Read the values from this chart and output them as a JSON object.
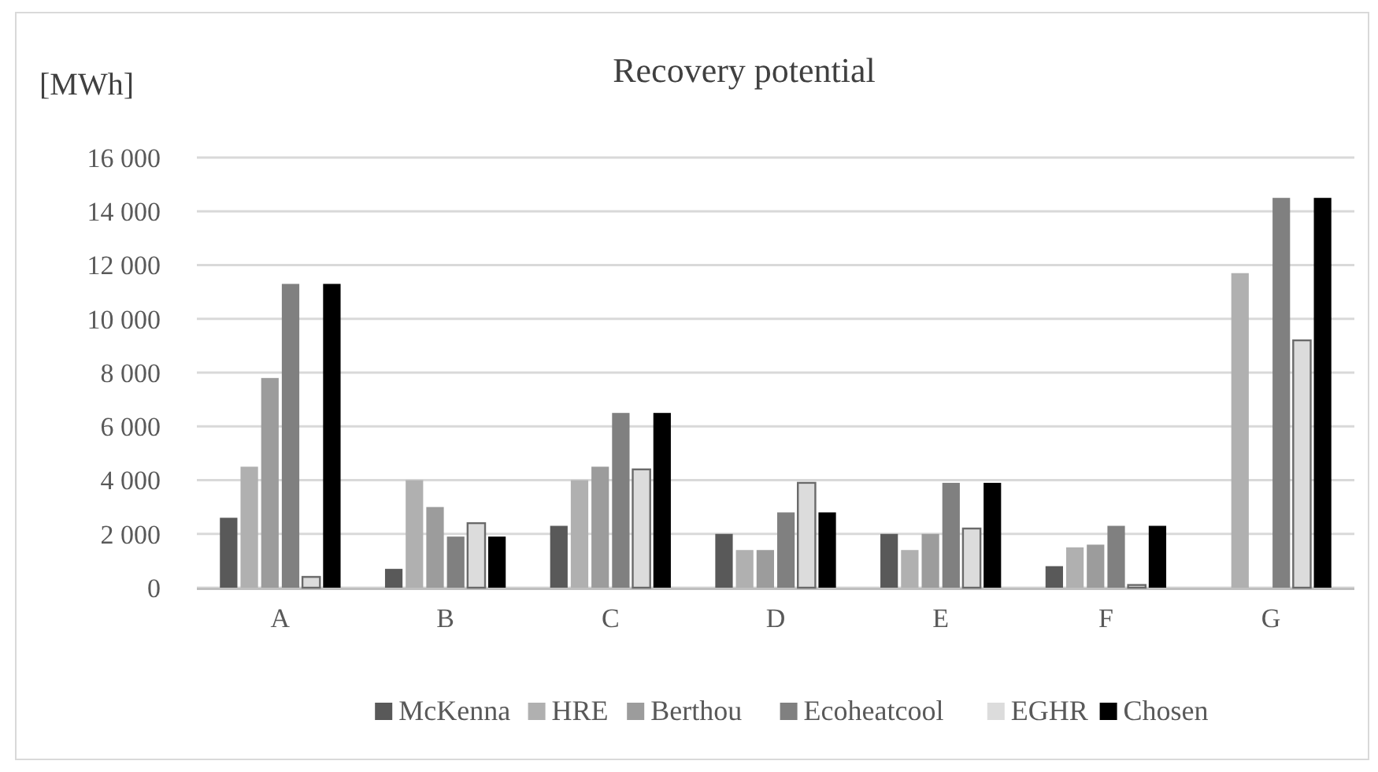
{
  "chart_data": {
    "type": "bar",
    "title": "Recovery potential",
    "ylabel": "[MWh]",
    "categories": [
      "A",
      "B",
      "C",
      "D",
      "E",
      "F",
      "G"
    ],
    "series": [
      {
        "name": "McKenna",
        "color": "#595959",
        "values": [
          2600,
          700,
          2300,
          2000,
          2000,
          800,
          null
        ]
      },
      {
        "name": "HRE",
        "color": "#b0b0b0",
        "values": [
          4500,
          4000,
          4000,
          1400,
          1400,
          1500,
          11700
        ]
      },
      {
        "name": "Berthou",
        "color": "#9c9c9c",
        "values": [
          7800,
          3000,
          4500,
          1400,
          2000,
          1600,
          null
        ]
      },
      {
        "name": "Ecoheatcool",
        "color": "#808080",
        "values": [
          11300,
          1900,
          6500,
          2800,
          3900,
          2300,
          14500
        ]
      },
      {
        "name": "EGHR",
        "color": "#dcdcdc",
        "values": [
          400,
          2400,
          4400,
          3900,
          2200,
          100,
          9200
        ]
      },
      {
        "name": "Chosen",
        "color": "#000000",
        "values": [
          11300,
          1900,
          6500,
          2800,
          3900,
          2300,
          14500
        ]
      }
    ],
    "ylim": [
      0,
      16000
    ],
    "yticks": [
      0,
      {
        "value": 2000,
        "label": "2 000"
      },
      {
        "value": 4000,
        "label": "4 000"
      },
      {
        "value": 6000,
        "label": "6 000"
      },
      {
        "value": 8000,
        "label": "8 000"
      },
      {
        "value": 10000,
        "label": "10 000"
      },
      {
        "value": 12000,
        "label": "12 000"
      },
      {
        "value": 14000,
        "label": "14 000"
      },
      {
        "value": 16000,
        "label": "16 000"
      }
    ],
    "grid": "y",
    "legend": "bottom"
  }
}
